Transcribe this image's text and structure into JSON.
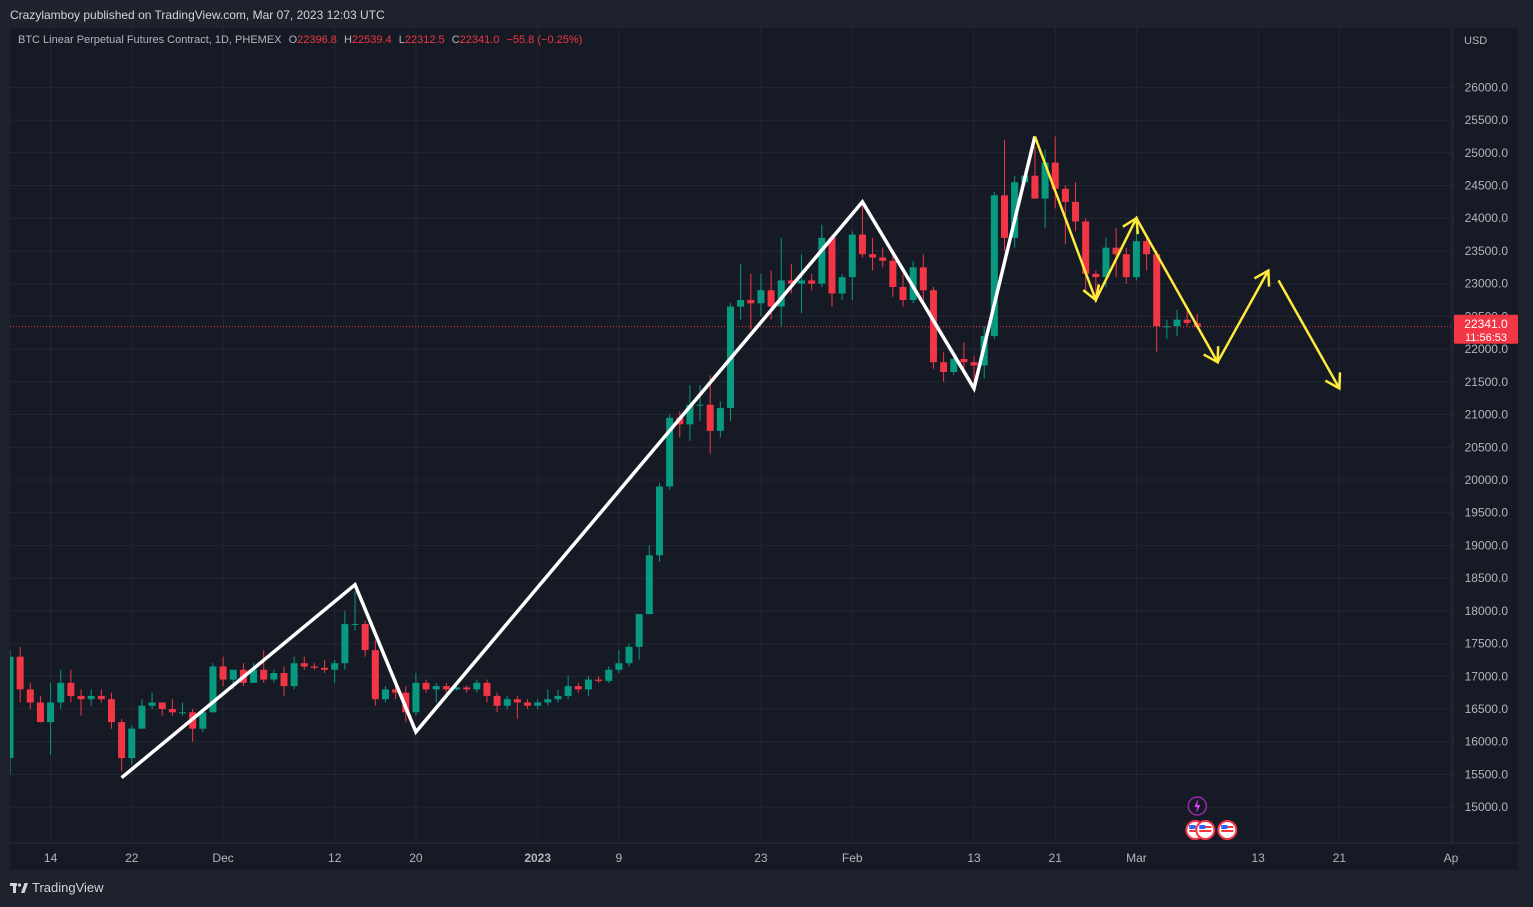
{
  "header": {
    "published": "Crazylamboy published on TradingView.com, Mar 07, 2023 12:03 UTC"
  },
  "legend": {
    "symbol": "BTC Linear Perpetual Futures Contract, 1D, PHEMEX",
    "o_label": "O",
    "o": "22396.8",
    "h_label": "H",
    "h": "22539.4",
    "l_label": "L",
    "l": "22312.5",
    "c_label": "C",
    "c": "22341.0",
    "change": "−55.8 (−0.25%)"
  },
  "price_tag": {
    "price": "22341.0",
    "countdown": "11:56:53"
  },
  "footer": {
    "brand": "TradingView"
  },
  "colors": {
    "up": "#089981",
    "down": "#f23645",
    "drawing_white": "#ffffff",
    "drawing_yellow": "#ffeb3b",
    "background": "#161a25"
  },
  "chart_data": {
    "type": "candlestick",
    "currency_label": "USD",
    "y_ticks": [
      "15000.0",
      "15500.0",
      "16000.0",
      "16500.0",
      "17000.0",
      "17500.0",
      "18000.0",
      "18500.0",
      "19000.0",
      "19500.0",
      "20000.0",
      "20500.0",
      "21000.0",
      "21500.0",
      "22000.0",
      "22500.0",
      "23000.0",
      "23500.0",
      "24000.0",
      "24500.0",
      "25000.0",
      "25500.0",
      "26000.0"
    ],
    "ylim": [
      14850,
      26250
    ],
    "x_ticks": [
      {
        "date": "2022-11-14",
        "label": "14"
      },
      {
        "date": "2022-11-22",
        "label": "22"
      },
      {
        "date": "2022-12-01",
        "label": "Dec"
      },
      {
        "date": "2022-12-12",
        "label": "12"
      },
      {
        "date": "2022-12-20",
        "label": "20"
      },
      {
        "date": "2023-01-01",
        "label": "2023"
      },
      {
        "date": "2023-01-09",
        "label": "9"
      },
      {
        "date": "2023-01-23",
        "label": "23"
      },
      {
        "date": "2023-02-01",
        "label": "Feb"
      },
      {
        "date": "2023-02-13",
        "label": "13"
      },
      {
        "date": "2023-02-21",
        "label": "21"
      },
      {
        "date": "2023-03-01",
        "label": "Mar"
      },
      {
        "date": "2023-03-13",
        "label": "13"
      },
      {
        "date": "2023-03-21",
        "label": "21"
      },
      {
        "date": "2023-04-01",
        "label": "Ap"
      }
    ],
    "x_range": [
      "2022-11-10",
      "2023-04-01"
    ],
    "current_price": 22341.0,
    "candles": [
      [
        "2022-11-10",
        15750,
        17400,
        15500,
        17300
      ],
      [
        "2022-11-11",
        17300,
        17450,
        16600,
        16800
      ],
      [
        "2022-11-12",
        16800,
        16900,
        16500,
        16600
      ],
      [
        "2022-11-13",
        16600,
        16700,
        16300,
        16300
      ],
      [
        "2022-11-14",
        16300,
        16900,
        15800,
        16600
      ],
      [
        "2022-11-15",
        16600,
        17100,
        16500,
        16900
      ],
      [
        "2022-11-16",
        16900,
        17100,
        16600,
        16700
      ],
      [
        "2022-11-17",
        16700,
        16800,
        16400,
        16650
      ],
      [
        "2022-11-18",
        16650,
        16800,
        16550,
        16700
      ],
      [
        "2022-11-19",
        16700,
        16800,
        16600,
        16650
      ],
      [
        "2022-11-20",
        16650,
        16750,
        16200,
        16300
      ],
      [
        "2022-11-21",
        16300,
        16350,
        15550,
        15750
      ],
      [
        "2022-11-22",
        15750,
        16250,
        15650,
        16200
      ],
      [
        "2022-11-23",
        16200,
        16650,
        16200,
        16550
      ],
      [
        "2022-11-24",
        16550,
        16750,
        16500,
        16600
      ],
      [
        "2022-11-25",
        16600,
        16600,
        16400,
        16500
      ],
      [
        "2022-11-26",
        16500,
        16650,
        16400,
        16450
      ],
      [
        "2022-11-27",
        16450,
        16600,
        16400,
        16450
      ],
      [
        "2022-11-28",
        16450,
        16500,
        16000,
        16200
      ],
      [
        "2022-11-29",
        16200,
        16500,
        16150,
        16450
      ],
      [
        "2022-11-30",
        16450,
        17200,
        16450,
        17150
      ],
      [
        "2022-12-01",
        17150,
        17300,
        16850,
        16950
      ],
      [
        "2022-12-02",
        16950,
        17100,
        16800,
        17100
      ],
      [
        "2022-12-03",
        17100,
        17200,
        16850,
        16900
      ],
      [
        "2022-12-04",
        16900,
        17200,
        16900,
        17100
      ],
      [
        "2022-12-05",
        17100,
        17400,
        16900,
        16950
      ],
      [
        "2022-12-06",
        16950,
        17100,
        16900,
        17050
      ],
      [
        "2022-12-07",
        17050,
        17150,
        16700,
        16850
      ],
      [
        "2022-12-08",
        16850,
        17300,
        16800,
        17200
      ],
      [
        "2022-12-09",
        17200,
        17300,
        17100,
        17150
      ],
      [
        "2022-12-10",
        17150,
        17200,
        17100,
        17130
      ],
      [
        "2022-12-11",
        17130,
        17250,
        17050,
        17100
      ],
      [
        "2022-12-12",
        17100,
        17250,
        16900,
        17200
      ],
      [
        "2022-12-13",
        17200,
        18000,
        17100,
        17800
      ],
      [
        "2022-12-14",
        17800,
        18300,
        17700,
        17800
      ],
      [
        "2022-12-15",
        17800,
        17850,
        17300,
        17400
      ],
      [
        "2022-12-16",
        17400,
        17550,
        16550,
        16650
      ],
      [
        "2022-12-17",
        16650,
        16850,
        16600,
        16800
      ],
      [
        "2022-12-18",
        16800,
        16850,
        16650,
        16750
      ],
      [
        "2022-12-19",
        16750,
        16850,
        16300,
        16450
      ],
      [
        "2022-12-20",
        16450,
        17050,
        16400,
        16900
      ],
      [
        "2022-12-21",
        16900,
        16950,
        16750,
        16800
      ],
      [
        "2022-12-22",
        16800,
        16900,
        16600,
        16850
      ],
      [
        "2022-12-23",
        16850,
        16900,
        16750,
        16800
      ],
      [
        "2022-12-24",
        16800,
        16850,
        16780,
        16830
      ],
      [
        "2022-12-25",
        16830,
        16860,
        16750,
        16800
      ],
      [
        "2022-12-26",
        16800,
        16950,
        16750,
        16900
      ],
      [
        "2022-12-27",
        16900,
        16950,
        16600,
        16700
      ],
      [
        "2022-12-28",
        16700,
        16750,
        16450,
        16550
      ],
      [
        "2022-12-29",
        16550,
        16700,
        16500,
        16650
      ],
      [
        "2022-12-30",
        16650,
        16700,
        16350,
        16600
      ],
      [
        "2022-12-31",
        16600,
        16650,
        16500,
        16550
      ],
      [
        "2023-01-01",
        16550,
        16650,
        16500,
        16600
      ],
      [
        "2023-01-02",
        16600,
        16800,
        16550,
        16650
      ],
      [
        "2023-01-03",
        16650,
        16800,
        16600,
        16700
      ],
      [
        "2023-01-04",
        16700,
        17000,
        16650,
        16850
      ],
      [
        "2023-01-05",
        16850,
        16900,
        16750,
        16800
      ],
      [
        "2023-01-06",
        16800,
        17000,
        16700,
        16950
      ],
      [
        "2023-01-07",
        16950,
        17000,
        16900,
        16930
      ],
      [
        "2023-01-08",
        16930,
        17150,
        16900,
        17100
      ],
      [
        "2023-01-09",
        17100,
        17400,
        17050,
        17200
      ],
      [
        "2023-01-10",
        17200,
        17500,
        17150,
        17450
      ],
      [
        "2023-01-11",
        17450,
        17950,
        17250,
        17950
      ],
      [
        "2023-01-12",
        17950,
        19000,
        17950,
        18850
      ],
      [
        "2023-01-13",
        18850,
        19950,
        18750,
        19900
      ],
      [
        "2023-01-14",
        19900,
        21000,
        19850,
        20950
      ],
      [
        "2023-01-15",
        20950,
        21050,
        20650,
        20850
      ],
      [
        "2023-01-16",
        20850,
        21450,
        20600,
        21150
      ],
      [
        "2023-01-17",
        21150,
        21450,
        20900,
        21150
      ],
      [
        "2023-01-18",
        21150,
        21600,
        20400,
        20750
      ],
      [
        "2023-01-19",
        20750,
        21200,
        20650,
        21100
      ],
      [
        "2023-01-20",
        21100,
        22700,
        20900,
        22650
      ],
      [
        "2023-01-21",
        22650,
        23300,
        22450,
        22750
      ],
      [
        "2023-01-22",
        22750,
        23150,
        22300,
        22700
      ],
      [
        "2023-01-23",
        22700,
        23150,
        22500,
        22900
      ],
      [
        "2023-01-24",
        22900,
        23200,
        22450,
        22650
      ],
      [
        "2023-01-25",
        22650,
        23700,
        22350,
        23050
      ],
      [
        "2023-01-26",
        23050,
        23300,
        22850,
        23000
      ],
      [
        "2023-01-27",
        23000,
        23450,
        22550,
        23050
      ],
      [
        "2023-01-28",
        23050,
        23150,
        22900,
        23000
      ],
      [
        "2023-01-29",
        23000,
        23900,
        22950,
        23700
      ],
      [
        "2023-01-30",
        23700,
        23750,
        22650,
        22850
      ],
      [
        "2023-01-31",
        22850,
        23150,
        22750,
        23100
      ],
      [
        "2023-02-01",
        23100,
        23800,
        22750,
        23750
      ],
      [
        "2023-02-02",
        23750,
        24250,
        23400,
        23450
      ],
      [
        "2023-02-03",
        23450,
        23700,
        23200,
        23400
      ],
      [
        "2023-02-04",
        23400,
        23550,
        23250,
        23350
      ],
      [
        "2023-02-05",
        23350,
        23450,
        22800,
        22950
      ],
      [
        "2023-02-06",
        22950,
        23150,
        22650,
        22750
      ],
      [
        "2023-02-07",
        22750,
        23350,
        22700,
        23250
      ],
      [
        "2023-02-08",
        23250,
        23450,
        22700,
        22900
      ],
      [
        "2023-02-09",
        22900,
        22950,
        21700,
        21800
      ],
      [
        "2023-02-10",
        21800,
        21950,
        21500,
        21650
      ],
      [
        "2023-02-11",
        21650,
        21900,
        21600,
        21850
      ],
      [
        "2023-02-12",
        21850,
        22100,
        21650,
        21800
      ],
      [
        "2023-02-13",
        21800,
        21900,
        21400,
        21750
      ],
      [
        "2023-02-14",
        21750,
        22350,
        21550,
        22200
      ],
      [
        "2023-02-15",
        22200,
        24400,
        22150,
        24350
      ],
      [
        "2023-02-16",
        24350,
        25200,
        23500,
        23700
      ],
      [
        "2023-02-17",
        23700,
        24650,
        23550,
        24550
      ],
      [
        "2023-02-18",
        24550,
        24700,
        24500,
        24650
      ],
      [
        "2023-02-19",
        24650,
        25100,
        24300,
        24300
      ],
      [
        "2023-02-20",
        24300,
        25050,
        23850,
        24850
      ],
      [
        "2023-02-21",
        24850,
        25250,
        24150,
        24450
      ],
      [
        "2023-02-22",
        24450,
        24500,
        23600,
        24250
      ],
      [
        "2023-02-23",
        24250,
        24550,
        23800,
        23950
      ],
      [
        "2023-02-24",
        23950,
        24000,
        22850,
        23150
      ],
      [
        "2023-02-25",
        23150,
        23200,
        22750,
        23100
      ],
      [
        "2023-02-26",
        23100,
        23700,
        22950,
        23550
      ],
      [
        "2023-02-27",
        23550,
        23850,
        23100,
        23450
      ],
      [
        "2023-02-28",
        23450,
        23550,
        23000,
        23100
      ],
      [
        "2023-03-01",
        23100,
        23950,
        23050,
        23650
      ],
      [
        "2023-03-02",
        23650,
        23750,
        23200,
        23450
      ],
      [
        "2023-03-03",
        23450,
        23500,
        21950,
        22350
      ],
      [
        "2023-03-04",
        22350,
        22450,
        22150,
        22350
      ],
      [
        "2023-03-05",
        22350,
        22600,
        22200,
        22450
      ],
      [
        "2023-03-06",
        22450,
        22600,
        22350,
        22400
      ],
      [
        "2023-03-07",
        22397,
        22539,
        22313,
        22341
      ]
    ],
    "drawings": {
      "white_zigzag": [
        [
          "2022-11-21",
          15450
        ],
        [
          "2022-12-14",
          18400
        ],
        [
          "2022-12-20",
          16150
        ],
        [
          "2023-02-02",
          24250
        ],
        [
          "2023-02-13",
          21400
        ],
        [
          "2023-02-19",
          25250
        ]
      ],
      "yellow_zigzag": [
        [
          "2023-02-19",
          25250
        ],
        [
          "2023-02-25",
          22750
        ],
        [
          "2023-03-01",
          24000
        ],
        [
          "2023-03-09",
          21800
        ]
      ],
      "yellow_projection_up": [
        [
          "2023-03-09",
          21800
        ],
        [
          "2023-03-14",
          23200
        ]
      ],
      "yellow_projection_down": [
        [
          "2023-03-15",
          23050
        ],
        [
          "2023-03-21",
          21400
        ]
      ]
    }
  }
}
